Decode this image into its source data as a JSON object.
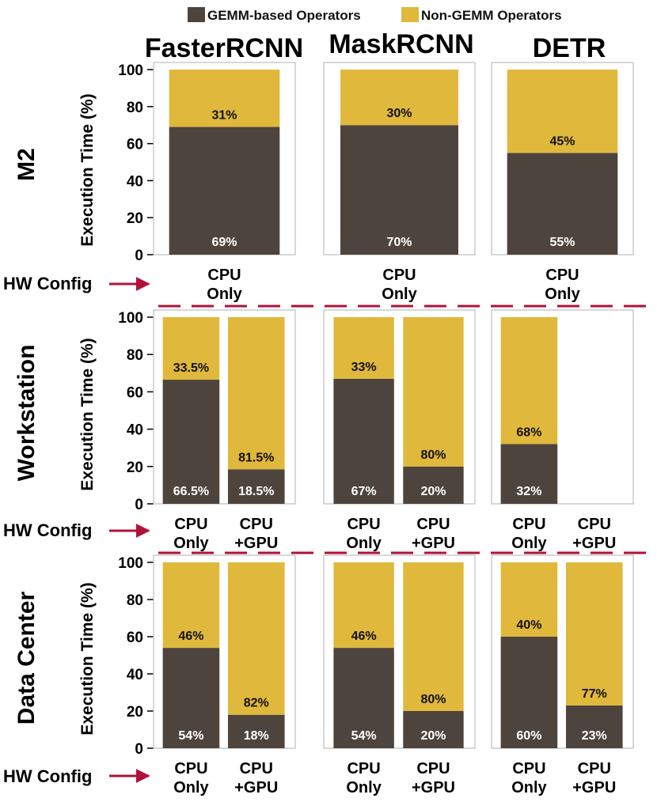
{
  "legend": {
    "items": [
      {
        "label": "GEMM-based Operators",
        "color": "#4d443d"
      },
      {
        "label": "Non-GEMM Operators",
        "color": "#e0b83c"
      }
    ]
  },
  "models": [
    "FasterRCNN",
    "MaskRCNN",
    "DETR"
  ],
  "rows": [
    "M2",
    "Workstation",
    "Data Center"
  ],
  "hw_config_label": "HW Config",
  "y_axis": {
    "label": "Execution Time (%)",
    "ticks": [
      "0",
      "20",
      "40",
      "60",
      "80",
      "100"
    ]
  },
  "chart_data": {
    "type": "bar",
    "stacked": true,
    "title": "",
    "ylabel": "Execution Time (%)",
    "ylim": [
      0,
      100
    ],
    "series_names": [
      "GEMM-based Operators",
      "Non-GEMM Operators"
    ],
    "panels": [
      {
        "row": "M2",
        "model": "FasterRCNN",
        "bars": [
          {
            "cat": [
              "CPU",
              "Only"
            ],
            "gemm": 69,
            "non": 31,
            "gemm_label": "69%",
            "non_label": "31%"
          }
        ]
      },
      {
        "row": "M2",
        "model": "MaskRCNN",
        "bars": [
          {
            "cat": [
              "CPU",
              "Only"
            ],
            "gemm": 70,
            "non": 30,
            "gemm_label": "70%",
            "non_label": "30%"
          }
        ]
      },
      {
        "row": "M2",
        "model": "DETR",
        "bars": [
          {
            "cat": [
              "CPU",
              "Only"
            ],
            "gemm": 55,
            "non": 45,
            "gemm_label": "55%",
            "non_label": "45%"
          }
        ]
      },
      {
        "row": "Workstation",
        "model": "FasterRCNN",
        "bars": [
          {
            "cat": [
              "CPU",
              "Only"
            ],
            "gemm": 66.5,
            "non": 33.5,
            "gemm_label": "66.5%",
            "non_label": "33.5%"
          },
          {
            "cat": [
              "CPU",
              "+GPU"
            ],
            "gemm": 18.5,
            "non": 81.5,
            "gemm_label": "18.5%",
            "non_label": "81.5%"
          }
        ]
      },
      {
        "row": "Workstation",
        "model": "MaskRCNN",
        "bars": [
          {
            "cat": [
              "CPU",
              "Only"
            ],
            "gemm": 67,
            "non": 33,
            "gemm_label": "67%",
            "non_label": "33%"
          },
          {
            "cat": [
              "CPU",
              "+GPU"
            ],
            "gemm": 20,
            "non": 80,
            "gemm_label": "20%",
            "non_label": "80%"
          }
        ]
      },
      {
        "row": "Workstation",
        "model": "DETR",
        "bars": [
          {
            "cat": [
              "CPU",
              "Only"
            ],
            "gemm": 32,
            "non": 68,
            "gemm_label": "32%",
            "non_label": "68%"
          }
        ],
        "categories": [
          [
            "CPU",
            "Only"
          ],
          [
            "CPU",
            "+GPU"
          ]
        ]
      },
      {
        "row": "Data Center",
        "model": "FasterRCNN",
        "bars": [
          {
            "cat": [
              "CPU",
              "Only"
            ],
            "gemm": 54,
            "non": 46,
            "gemm_label": "54%",
            "non_label": "46%"
          },
          {
            "cat": [
              "CPU",
              "+GPU"
            ],
            "gemm": 18,
            "non": 82,
            "gemm_label": "18%",
            "non_label": "82%"
          }
        ]
      },
      {
        "row": "Data Center",
        "model": "MaskRCNN",
        "bars": [
          {
            "cat": [
              "CPU",
              "Only"
            ],
            "gemm": 54,
            "non": 46,
            "gemm_label": "54%",
            "non_label": "46%"
          },
          {
            "cat": [
              "CPU",
              "+GPU"
            ],
            "gemm": 20,
            "non": 80,
            "gemm_label": "20%",
            "non_label": "80%"
          }
        ]
      },
      {
        "row": "Data Center",
        "model": "DETR",
        "bars": [
          {
            "cat": [
              "CPU",
              "Only"
            ],
            "gemm": 60,
            "non": 40,
            "gemm_label": "60%",
            "non_label": "40%"
          },
          {
            "cat": [
              "CPU",
              "+GPU"
            ],
            "gemm": 23,
            "non": 77,
            "gemm_label": "23%",
            "non_label": "77%"
          }
        ]
      }
    ]
  }
}
